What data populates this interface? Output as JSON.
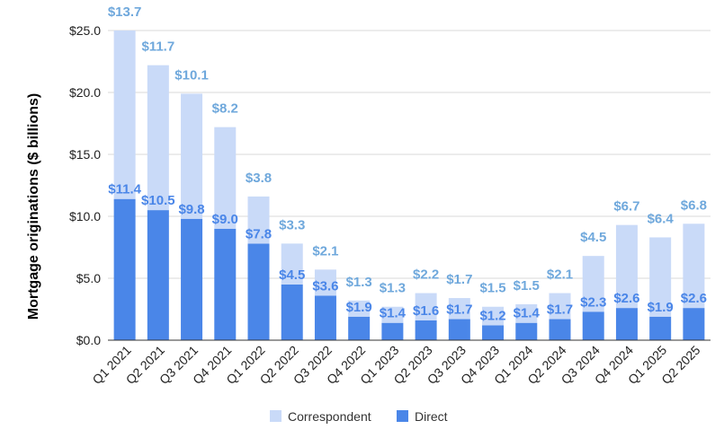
{
  "chart_data": {
    "type": "bar",
    "stacked": true,
    "title": "",
    "xlabel": "",
    "ylabel": "Mortgage originations ($ billions)",
    "ylim": [
      0,
      25
    ],
    "yticks": [
      "$0.0",
      "$5.0",
      "$10.0",
      "$15.0",
      "$20.0",
      "$25.0"
    ],
    "grid": true,
    "legend_position": "bottom",
    "categories": [
      "Q1 2021",
      "Q2 2021",
      "Q3 2021",
      "Q4 2021",
      "Q1 2022",
      "Q2 2022",
      "Q3 2022",
      "Q4 2022",
      "Q1 2023",
      "Q2 2023",
      "Q3 2023",
      "Q4 2023",
      "Q1 2024",
      "Q2 2024",
      "Q3 2024",
      "Q4 2024",
      "Q1 2025",
      "Q2 2025"
    ],
    "series": [
      {
        "name": "Direct",
        "color": "#4a86e8",
        "label_color": "#4a86e8",
        "values": [
          11.4,
          10.5,
          9.8,
          9.0,
          7.8,
          4.5,
          3.6,
          1.9,
          1.4,
          1.6,
          1.7,
          1.2,
          1.4,
          1.7,
          2.3,
          2.6,
          1.9,
          2.6
        ],
        "labels": [
          "$11.4",
          "$10.5",
          "$9.8",
          "$9.0",
          "$7.8",
          "$4.5",
          "$3.6",
          "$1.9",
          "$1.4",
          "$1.6",
          "$1.7",
          "$1.2",
          "$1.4",
          "$1.7",
          "$2.3",
          "$2.6",
          "$1.9",
          "$2.6"
        ]
      },
      {
        "name": "Correspondent",
        "color": "#c9daf8",
        "label_color": "#6fa8dc",
        "values": [
          13.7,
          11.7,
          10.1,
          8.2,
          3.8,
          3.3,
          2.1,
          1.3,
          1.3,
          2.2,
          1.7,
          1.5,
          1.5,
          2.1,
          4.5,
          6.7,
          6.4,
          6.8
        ],
        "labels": [
          "$13.7",
          "$11.7",
          "$10.1",
          "$8.2",
          "$3.8",
          "$3.3",
          "$2.1",
          "$1.3",
          "$1.3",
          "$2.2",
          "$1.7",
          "$1.5",
          "$1.5",
          "$2.1",
          "$4.5",
          "$6.7",
          "$6.4",
          "$6.8"
        ]
      }
    ],
    "legend": [
      "Correspondent",
      "Direct"
    ]
  },
  "colors": {
    "gridline": "#d9d9d9",
    "axis": "#333333"
  }
}
